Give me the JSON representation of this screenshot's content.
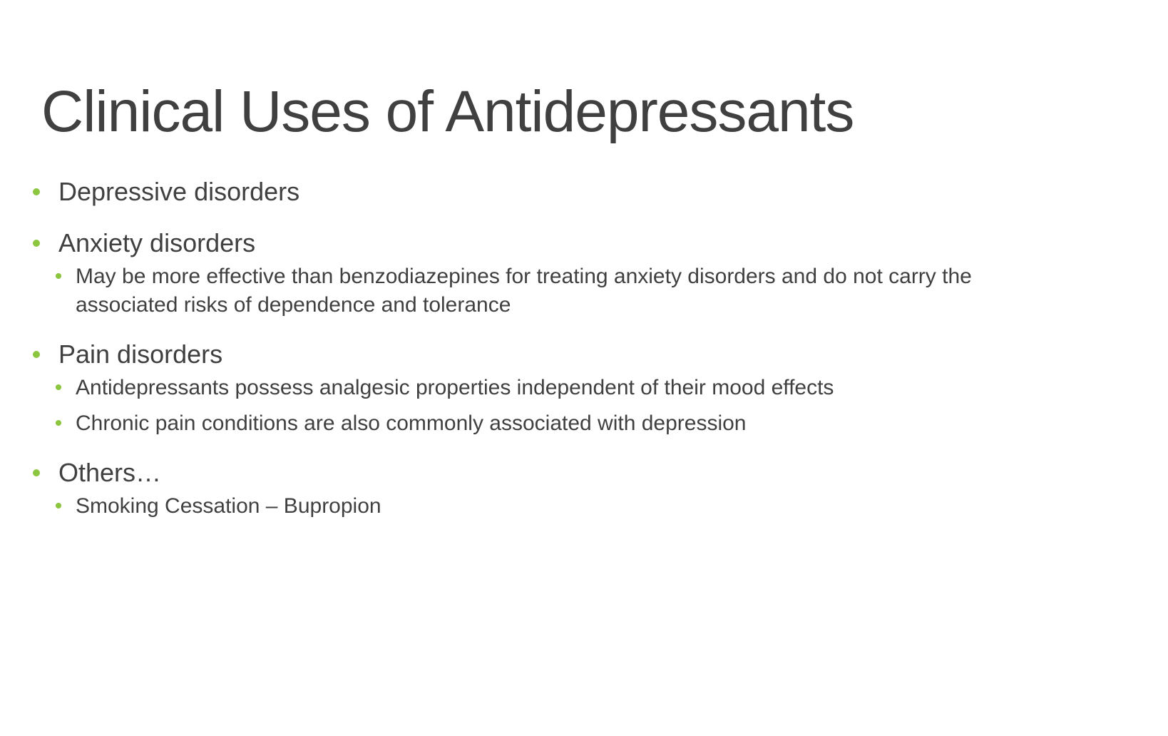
{
  "slide": {
    "title": "Clinical Uses of Antidepressants",
    "bullet_color": "#8cc63f",
    "text_color": "#404040",
    "items": [
      {
        "label": "Depressive disorders",
        "sub": []
      },
      {
        "label": "Anxiety disorders",
        "sub": [
          "May be more effective than benzodiazepines for treating anxiety disorders and do not carry the associated risks of dependence and tolerance"
        ]
      },
      {
        "label": "Pain disorders",
        "sub": [
          "Antidepressants possess analgesic properties independent of their mood effects",
          "Chronic pain conditions are also commonly associated with depression"
        ]
      },
      {
        "label": "Others…",
        "sub": [
          "Smoking Cessation – Bupropion"
        ]
      }
    ]
  }
}
